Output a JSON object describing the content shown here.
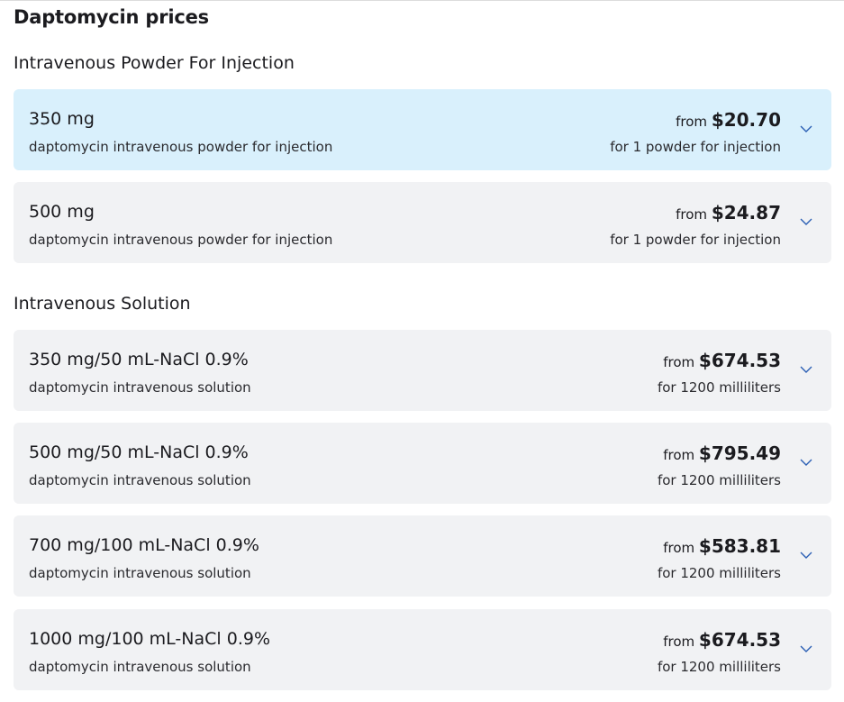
{
  "title": "Daptomycin prices",
  "colors": {
    "active_card": "#d9f0fc",
    "card": "#f1f2f4",
    "chevron": "#2b5fb4"
  },
  "sections": [
    {
      "heading": "Intravenous Powder For Injection",
      "items": [
        {
          "name": "350 mg",
          "desc": "daptomycin intravenous powder for injection",
          "from": "from",
          "price": "$20.70",
          "unit": "for 1 powder for injection",
          "active": true,
          "icon": "chevron-down-icon"
        },
        {
          "name": "500 mg",
          "desc": "daptomycin intravenous powder for injection",
          "from": "from",
          "price": "$24.87",
          "unit": "for 1 powder for injection",
          "active": false,
          "icon": "chevron-down-icon"
        }
      ]
    },
    {
      "heading": "Intravenous Solution",
      "items": [
        {
          "name": "350 mg/50 mL-NaCl 0.9%",
          "desc": "daptomycin intravenous solution",
          "from": "from",
          "price": "$674.53",
          "unit": "for 1200 milliliters",
          "active": false,
          "icon": "chevron-down-icon"
        },
        {
          "name": "500 mg/50 mL-NaCl 0.9%",
          "desc": "daptomycin intravenous solution",
          "from": "from",
          "price": "$795.49",
          "unit": "for 1200 milliliters",
          "active": false,
          "icon": "chevron-down-icon"
        },
        {
          "name": "700 mg/100 mL-NaCl 0.9%",
          "desc": "daptomycin intravenous solution",
          "from": "from",
          "price": "$583.81",
          "unit": "for 1200 milliliters",
          "active": false,
          "icon": "chevron-down-icon"
        },
        {
          "name": "1000 mg/100 mL-NaCl 0.9%",
          "desc": "daptomycin intravenous solution",
          "from": "from",
          "price": "$674.53",
          "unit": "for 1200 milliliters",
          "active": false,
          "icon": "chevron-down-icon"
        }
      ]
    }
  ]
}
